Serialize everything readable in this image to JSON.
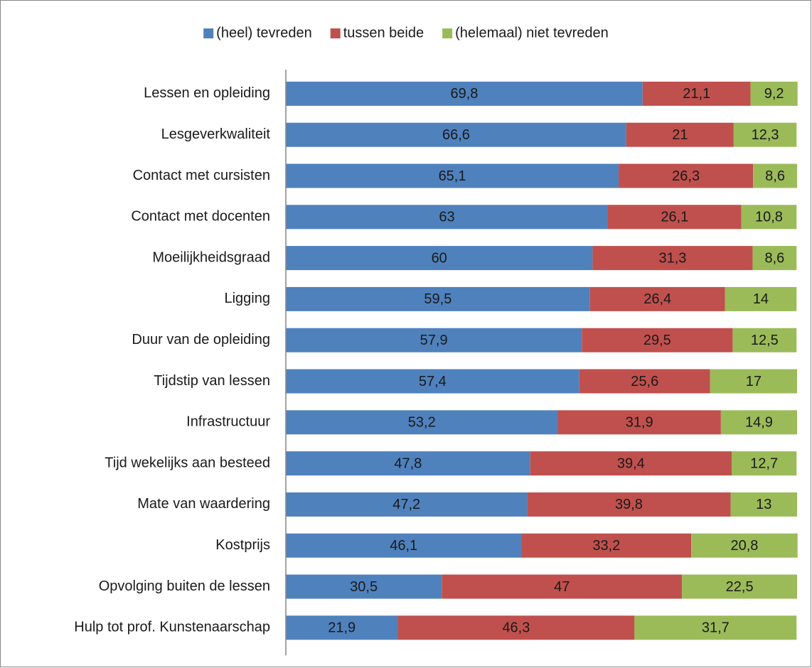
{
  "chart_data": {
    "type": "stacked-bar-horizontal",
    "categories": [
      "Lessen en opleiding",
      "Lesgeverkwaliteit",
      "Contact met cursisten",
      "Contact met docenten",
      "Moeilijkheidsgraad",
      "Ligging",
      "Duur van de opleiding",
      "Tijdstip van lessen",
      "Infrastructuur",
      "Tijd wekelijks aan besteed",
      "Mate van waardering",
      "Kostprijs",
      "Opvolging buiten de lessen",
      "Hulp tot prof. Kunstenaarschap"
    ],
    "xlim": [
      0,
      100
    ],
    "legend": "top",
    "series": [
      {
        "name": "(heel) tevreden",
        "color": "#4f81bd",
        "values": [
          69.8,
          66.6,
          65.1,
          63,
          60,
          59.5,
          57.9,
          57.4,
          53.2,
          47.8,
          47.2,
          46.1,
          30.5,
          21.9
        ],
        "value_labels": [
          "69,8",
          "66,6",
          "65,1",
          "63",
          "60",
          "59,5",
          "57,9",
          "57,4",
          "53,2",
          "47,8",
          "47,2",
          "46,1",
          "30,5",
          "21,9"
        ]
      },
      {
        "name": "tussen beide",
        "color": "#c0504d",
        "values": [
          21.1,
          21,
          26.3,
          26.1,
          31.3,
          26.4,
          29.5,
          25.6,
          31.9,
          39.4,
          39.8,
          33.2,
          47,
          46.3
        ],
        "value_labels": [
          "21,1",
          "21",
          "26,3",
          "26,1",
          "31,3",
          "26,4",
          "29,5",
          "25,6",
          "31,9",
          "39,4",
          "39,8",
          "33,2",
          "47",
          "46,3"
        ]
      },
      {
        "name": "(helemaal) niet tevreden",
        "color": "#9bbb59",
        "values": [
          9.2,
          12.3,
          8.6,
          10.8,
          8.6,
          14,
          12.5,
          17,
          14.9,
          12.7,
          13,
          20.8,
          22.5,
          31.7
        ],
        "value_labels": [
          "9,2",
          "12,3",
          "8,6",
          "10,8",
          "8,6",
          "14",
          "12,5",
          "17",
          "14,9",
          "12,7",
          "13",
          "20,8",
          "22,5",
          "31,7"
        ]
      }
    ]
  }
}
